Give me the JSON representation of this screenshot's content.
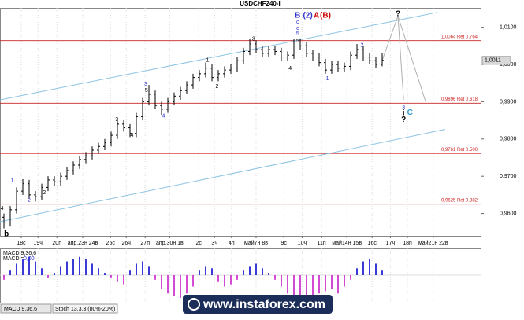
{
  "chart_data": {
    "type": "ohlc",
    "title": "USDCHF240-I",
    "ohlc": [
      [
        0.959,
        0.96,
        0.956,
        0.9575
      ],
      [
        0.9575,
        0.962,
        0.9565,
        0.961
      ],
      [
        0.961,
        0.967,
        0.96,
        0.966
      ],
      [
        0.966,
        0.9692,
        0.965,
        0.968
      ],
      [
        0.968,
        0.969,
        0.964,
        0.965
      ],
      [
        0.965,
        0.966,
        0.9632,
        0.9645
      ],
      [
        0.9645,
        0.968,
        0.9635,
        0.967
      ],
      [
        0.967,
        0.97,
        0.966,
        0.969
      ],
      [
        0.969,
        0.97,
        0.9675,
        0.9685
      ],
      [
        0.9685,
        0.971,
        0.9675,
        0.97
      ],
      [
        0.97,
        0.9725,
        0.969,
        0.9715
      ],
      [
        0.9715,
        0.974,
        0.9705,
        0.973
      ],
      [
        0.973,
        0.9755,
        0.972,
        0.9745
      ],
      [
        0.9745,
        0.9765,
        0.9735,
        0.9755
      ],
      [
        0.9755,
        0.978,
        0.9745,
        0.977
      ],
      [
        0.977,
        0.979,
        0.976,
        0.978
      ],
      [
        0.978,
        0.98,
        0.977,
        0.979
      ],
      [
        0.979,
        0.982,
        0.978,
        0.981
      ],
      [
        0.981,
        0.9855,
        0.98,
        0.984
      ],
      [
        0.984,
        0.985,
        0.982,
        0.983
      ],
      [
        0.983,
        0.984,
        0.9805,
        0.9815
      ],
      [
        0.9815,
        0.987,
        0.9805,
        0.986
      ],
      [
        0.986,
        0.991,
        0.985,
        0.99
      ],
      [
        0.99,
        0.9945,
        0.989,
        0.992
      ],
      [
        0.992,
        0.993,
        0.988,
        0.989
      ],
      [
        0.989,
        0.99,
        0.9865,
        0.988
      ],
      [
        0.988,
        0.991,
        0.987,
        0.99
      ],
      [
        0.99,
        0.9925,
        0.989,
        0.9915
      ],
      [
        0.9915,
        0.994,
        0.9905,
        0.993
      ],
      [
        0.993,
        0.9955,
        0.992,
        0.9945
      ],
      [
        0.9945,
        0.9975,
        0.9935,
        0.9965
      ],
      [
        0.9965,
        0.9985,
        0.9955,
        0.9975
      ],
      [
        0.9975,
        1.0005,
        0.9965,
        0.999
      ],
      [
        0.999,
        1.0,
        0.9955,
        0.9965
      ],
      [
        0.9965,
        0.9985,
        0.9955,
        0.9975
      ],
      [
        0.9975,
        0.9995,
        0.9965,
        0.9985
      ],
      [
        0.9985,
        1.0,
        0.9975,
        0.999
      ],
      [
        0.999,
        1.002,
        0.998,
        1.001
      ],
      [
        1.001,
        1.0045,
        1.0,
        1.0035
      ],
      [
        1.0035,
        1.007,
        1.0025,
        1.0055
      ],
      [
        1.0055,
        1.0065,
        1.003,
        1.004
      ],
      [
        1.004,
        1.005,
        1.002,
        1.003
      ],
      [
        1.003,
        1.005,
        1.002,
        1.004
      ],
      [
        1.004,
        1.005,
        1.0025,
        1.0035
      ],
      [
        1.0035,
        1.0045,
        1.001,
        1.002
      ],
      [
        1.002,
        1.0035,
        1.001,
        1.0025
      ],
      [
        1.0025,
        1.0068,
        1.0015,
        1.006
      ],
      [
        1.006,
        1.007,
        1.004,
        1.005
      ],
      [
        1.005,
        1.006,
        1.002,
        1.003
      ],
      [
        1.003,
        1.004,
        1.001,
        1.002
      ],
      [
        1.002,
        1.003,
        0.9995,
        1.0005
      ],
      [
        1.0005,
        1.0015,
        0.9975,
        0.9985
      ],
      [
        0.9985,
        1.001,
        0.9975,
        1.0
      ],
      [
        1.0,
        1.001,
        0.998,
        0.999
      ],
      [
        0.999,
        1.0005,
        0.998,
        0.9995
      ],
      [
        0.9995,
        1.0035,
        0.9985,
        1.0025
      ],
      [
        1.0025,
        1.0055,
        1.0015,
        1.004
      ],
      [
        1.004,
        1.005,
        1.001,
        1.002
      ],
      [
        1.002,
        1.003,
        1.0,
        1.001
      ],
      [
        1.001,
        1.002,
        0.999,
        1.0
      ],
      [
        1.0,
        1.003,
        0.9995,
        1.0011
      ]
    ],
    "xlim": [
      -0.625,
      75.625
    ],
    "ylim": [
      0.954,
      1.0152
    ],
    "yticks": [
      {
        "value": 1.01,
        "label": "1,0100"
      },
      {
        "value": 1.0,
        "label": "1,0000"
      },
      {
        "value": 0.99,
        "label": "0,9900"
      },
      {
        "value": 0.98,
        "label": "0,9800"
      },
      {
        "value": 0.97,
        "label": "0,9700"
      },
      {
        "value": 0.96,
        "label": "0,9600"
      }
    ],
    "xticks": [
      {
        "value": 2.75,
        "label": "18с"
      },
      {
        "value": 5.4,
        "label": "19ч"
      },
      {
        "value": 8.4,
        "label": "20п"
      },
      {
        "value": 12.5,
        "label": "апр.23н 24в"
      },
      {
        "value": 16.9,
        "label": "25с"
      },
      {
        "value": 19.4,
        "label": "26ч"
      },
      {
        "value": 22.4,
        "label": "27п"
      },
      {
        "value": 26.3,
        "label": "апр.30н 1в"
      },
      {
        "value": 30.9,
        "label": "2с"
      },
      {
        "value": 33.4,
        "label": "3ч"
      },
      {
        "value": 36.1,
        "label": "4п"
      },
      {
        "value": 40,
        "label": "май7н 8в"
      },
      {
        "value": 44.4,
        "label": "9с"
      },
      {
        "value": 47.3,
        "label": "10ч"
      },
      {
        "value": 50.4,
        "label": "11п"
      },
      {
        "value": 54.4,
        "label": "май14н 15в"
      },
      {
        "value": 58.4,
        "label": "16с"
      },
      {
        "value": 61.3,
        "label": "17ч"
      },
      {
        "value": 64,
        "label": "18п"
      },
      {
        "value": 68.1,
        "label": "май21н 22в"
      }
    ],
    "grid": true,
    "color": "#000000",
    "levels": [
      {
        "value": 1.0064,
        "label": "1,0064 Ret 0.764"
      },
      {
        "value": 0.9896,
        "label": "0,9896 Ret 0.618"
      },
      {
        "value": 0.9761,
        "label": "0,9761 Ret 0.500"
      },
      {
        "value": 0.9625,
        "label": "0,9625 Ret 0.382"
      }
    ],
    "level_color": "#cc2222",
    "channels": [
      {
        "x": [
          -0.6,
          68.8
        ],
        "y": [
          0.9905,
          1.014
        ]
      },
      {
        "x": [
          -0.6,
          70
        ],
        "y": [
          0.9578,
          0.9826
        ]
      }
    ],
    "channel_color": "#8cc3e3",
    "forecast": [
      {
        "x": [
          60,
          62.5,
          66.9
        ],
        "y": [
          1.0011,
          1.013,
          0.99
        ]
      },
      {
        "x": [
          62.5,
          63.4
        ],
        "y": [
          1.013,
          0.9905
        ]
      }
    ],
    "forecast_color": "#b0b0b0",
    "last_price": {
      "value": 1.0011,
      "label": "1,0011"
    },
    "annotations": [
      {
        "text": "b",
        "color": "#000000",
        "x": 0.4,
        "y": 0.9544,
        "bold": true
      },
      {
        "text": "4",
        "color": "#000000",
        "x": -0.3,
        "y": 0.9614,
        "bold": false
      },
      {
        "text": "1",
        "color": "#3333cc",
        "x": 1.3,
        "y": 0.9688,
        "bold": false
      },
      {
        "text": "2",
        "color": "#3333cc",
        "x": 4,
        "y": 0.9635,
        "bold": false
      },
      {
        "text": "2",
        "color": "#000000",
        "x": 6.4,
        "y": 0.9656,
        "bold": false
      },
      {
        "text": "3",
        "color": "#000000",
        "x": 17.9,
        "y": 0.9852,
        "bold": false
      },
      {
        "text": "4",
        "color": "#000000",
        "x": 20.3,
        "y": 0.981,
        "bold": false
      },
      {
        "text": "3",
        "color": "#3333cc",
        "x": 22.5,
        "y": 0.9947,
        "bold": false
      },
      {
        "text": "5",
        "color": "#000000",
        "x": 22.6,
        "y": 0.993,
        "bold": false
      },
      {
        "text": "4",
        "color": "#3333cc",
        "x": 25.3,
        "y": 0.9861,
        "bold": false
      },
      {
        "text": "1",
        "color": "#000000",
        "x": 32.3,
        "y": 1.0011,
        "bold": false
      },
      {
        "text": "2",
        "color": "#000000",
        "x": 33.8,
        "y": 0.9941,
        "bold": false
      },
      {
        "text": "3",
        "color": "#000000",
        "x": 39.6,
        "y": 1.0068,
        "bold": false
      },
      {
        "text": "4",
        "color": "#000000",
        "x": 45.4,
        "y": 0.9989,
        "bold": false
      },
      {
        "text": "5",
        "color": "#000000",
        "x": 46.6,
        "y": 1.0063,
        "bold": false
      },
      {
        "text": "5",
        "color": "#3333cc",
        "x": 46.6,
        "y": 1.0082,
        "bold": false
      },
      {
        "text": "c",
        "color": "#3333cc",
        "x": 46.6,
        "y": 1.0097,
        "bold": false
      },
      {
        "text": "c",
        "color": "#3333cc",
        "x": 46.6,
        "y": 1.0114,
        "bold": false
      },
      {
        "text": "B",
        "color": "#3333cc",
        "x": 46.6,
        "y": 1.0131,
        "bold": true
      },
      {
        "text": "(2)",
        "color": "#3333cc",
        "x": 48.2,
        "y": 1.0131,
        "bold": true
      },
      {
        "text": "A",
        "color": "#cc0000",
        "x": 49.6,
        "y": 1.0131,
        "bold": true
      },
      {
        "text": "(B)",
        "color": "#cc0000",
        "x": 51,
        "y": 1.0131,
        "bold": true
      },
      {
        "text": "1",
        "color": "#3333cc",
        "x": 51.3,
        "y": 0.9962,
        "bold": false
      },
      {
        "text": "2",
        "color": "#3333cc",
        "x": 56.8,
        "y": 1.0051,
        "bold": false
      },
      {
        "text": "?",
        "color": "#000000",
        "x": 62.5,
        "y": 1.0135,
        "bold": true
      },
      {
        "text": "3",
        "color": "#3333cc",
        "x": 63.4,
        "y": 0.9884,
        "bold": false
      },
      {
        "text": "i",
        "color": "#000000",
        "x": 63.4,
        "y": 0.9869,
        "bold": true
      },
      {
        "text": "C",
        "color": "#3399cc",
        "x": 64.4,
        "y": 0.9871,
        "bold": true
      },
      {
        "text": "?",
        "color": "#000000",
        "x": 63.4,
        "y": 0.9852,
        "bold": true
      }
    ],
    "macd": {
      "label": "MACD 9,36,6",
      "name": "MACD =",
      "current": "0,00",
      "values": [
        -0.2,
        0.2,
        0.5,
        0.7,
        0.8,
        0.6,
        0.3,
        -0.1,
        0.1,
        0.4,
        0.6,
        0.7,
        0.8,
        0.7,
        0.5,
        0.3,
        0.1,
        -0.1,
        -0.3,
        -0.4,
        0.2,
        0.5,
        0.6,
        0.4,
        -0.2,
        -0.6,
        -0.8,
        -0.9,
        -1.0,
        -0.8,
        -0.5,
        0.2,
        0.4,
        0.3,
        -0.3,
        -0.5,
        -0.4,
        -0.2,
        0.2,
        0.4,
        0.5,
        0.3,
        0.1,
        -0.2,
        -0.5,
        -0.8,
        -0.9,
        -1.0,
        -0.9,
        -1.0,
        -0.8,
        -0.7,
        -0.6,
        -0.8,
        -0.5,
        -0.2,
        0.3,
        0.6,
        0.7,
        0.5,
        0.2
      ],
      "ylim": [
        -1.1,
        1.1
      ],
      "up_color": "#3a3ad6",
      "down_color": "#d34ad3"
    },
    "tabs": [
      "MACD 9,36,6",
      "Stoch 13,3,3 (80%-20%)"
    ],
    "watermark": "www.instaforex.com"
  }
}
